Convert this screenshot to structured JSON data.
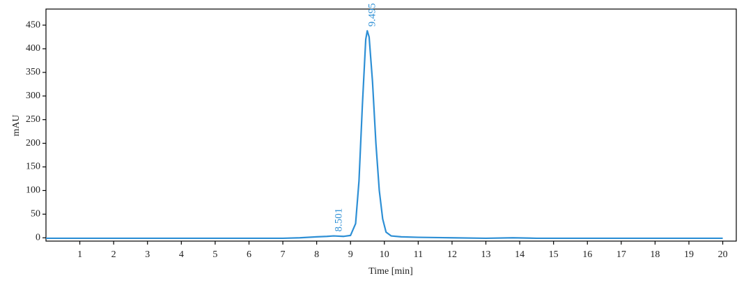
{
  "chart_data": {
    "type": "line",
    "x_label": "Time [min]",
    "y_label": "mAU",
    "x": [
      0,
      7,
      7.5,
      8,
      8.3,
      8.501,
      8.8,
      9.0,
      9.15,
      9.25,
      9.35,
      9.45,
      9.495,
      9.55,
      9.65,
      9.75,
      9.85,
      9.95,
      10.05,
      10.2,
      10.5,
      11,
      12,
      13,
      13.8,
      14.5,
      20
    ],
    "values": [
      -1,
      -1,
      0,
      2,
      3,
      4,
      3,
      5,
      30,
      120,
      280,
      420,
      438,
      425,
      330,
      200,
      100,
      40,
      12,
      4,
      2,
      1,
      0,
      -1,
      0,
      -1,
      -1
    ],
    "color": "#2d8fd5",
    "annotations": [
      {
        "text": "8.501",
        "x": 8.501,
        "y": 4
      },
      {
        "text": "9.495",
        "x": 9.495,
        "y": 438
      }
    ],
    "xlim": [
      0,
      20.4
    ],
    "ylim": [
      -7,
      484
    ],
    "xticks": [
      1,
      2,
      3,
      4,
      5,
      6,
      7,
      8,
      9,
      10,
      11,
      12,
      13,
      14,
      15,
      16,
      17,
      18,
      19,
      20
    ],
    "yticks": [
      0,
      50,
      100,
      150,
      200,
      250,
      300,
      350,
      400,
      450
    ]
  }
}
